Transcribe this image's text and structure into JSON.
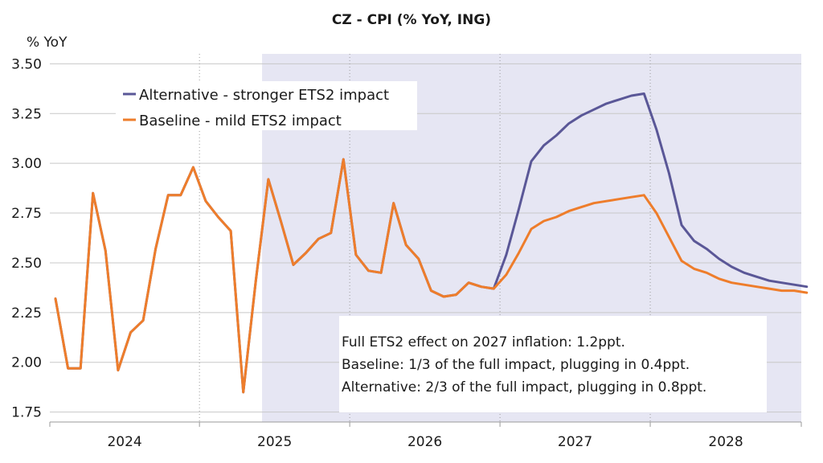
{
  "chart_data": {
    "type": "line",
    "title": "CZ - CPI (% YoY, ING)",
    "ylabel": "% YoY",
    "ylim": [
      1.7,
      3.55
    ],
    "yticks": [
      "3.50",
      "3.25",
      "3.00",
      "2.75",
      "2.50",
      "2.25",
      "2.00",
      "1.75"
    ],
    "ytick_values": [
      3.5,
      3.25,
      3.0,
      2.75,
      2.5,
      2.25,
      2.0,
      1.75
    ],
    "x_start": "2024-01",
    "x_labels": [
      "2024",
      "2025",
      "2026",
      "2027",
      "2028"
    ],
    "grid": true,
    "forecast_start": "2025-06",
    "forecast_shading": "#e6e6f3",
    "legend_position": "top-left",
    "series": [
      {
        "name": "Alternative - stronger ETS2 impact",
        "color": "#5a5797",
        "values": [
          2.32,
          1.97,
          1.97,
          2.85,
          2.56,
          1.96,
          2.15,
          2.21,
          2.57,
          2.84,
          2.84,
          2.98,
          2.81,
          2.73,
          2.66,
          1.85,
          2.41,
          2.92,
          2.71,
          2.49,
          2.55,
          2.62,
          2.65,
          3.02,
          2.54,
          2.46,
          2.45,
          2.8,
          2.59,
          2.52,
          2.36,
          2.33,
          2.34,
          2.4,
          2.38,
          2.37,
          2.54,
          2.77,
          3.01,
          3.09,
          3.14,
          3.2,
          3.24,
          3.27,
          3.3,
          3.32,
          3.34,
          3.35,
          3.17,
          2.95,
          2.69,
          2.61,
          2.57,
          2.52,
          2.48,
          2.45,
          2.43,
          2.41,
          2.4,
          2.39,
          2.38
        ]
      },
      {
        "name": "Baseline - mild ETS2 impact",
        "color": "#ee7d2b",
        "values": [
          2.32,
          1.97,
          1.97,
          2.85,
          2.56,
          1.96,
          2.15,
          2.21,
          2.57,
          2.84,
          2.84,
          2.98,
          2.81,
          2.73,
          2.66,
          1.85,
          2.41,
          2.92,
          2.71,
          2.49,
          2.55,
          2.62,
          2.65,
          3.02,
          2.54,
          2.46,
          2.45,
          2.8,
          2.59,
          2.52,
          2.36,
          2.33,
          2.34,
          2.4,
          2.38,
          2.37,
          2.44,
          2.55,
          2.67,
          2.71,
          2.73,
          2.76,
          2.78,
          2.8,
          2.81,
          2.82,
          2.83,
          2.84,
          2.75,
          2.63,
          2.51,
          2.47,
          2.45,
          2.42,
          2.4,
          2.39,
          2.38,
          2.37,
          2.36,
          2.36,
          2.35
        ]
      }
    ],
    "annotation": [
      "Full ETS2 effect on 2027 inflation: 1.2ppt.",
      "Baseline: 1/3 of the full impact, plugging in 0.4ppt.",
      "Alternative: 2/3 of the full impact, plugging in 0.8ppt."
    ]
  }
}
